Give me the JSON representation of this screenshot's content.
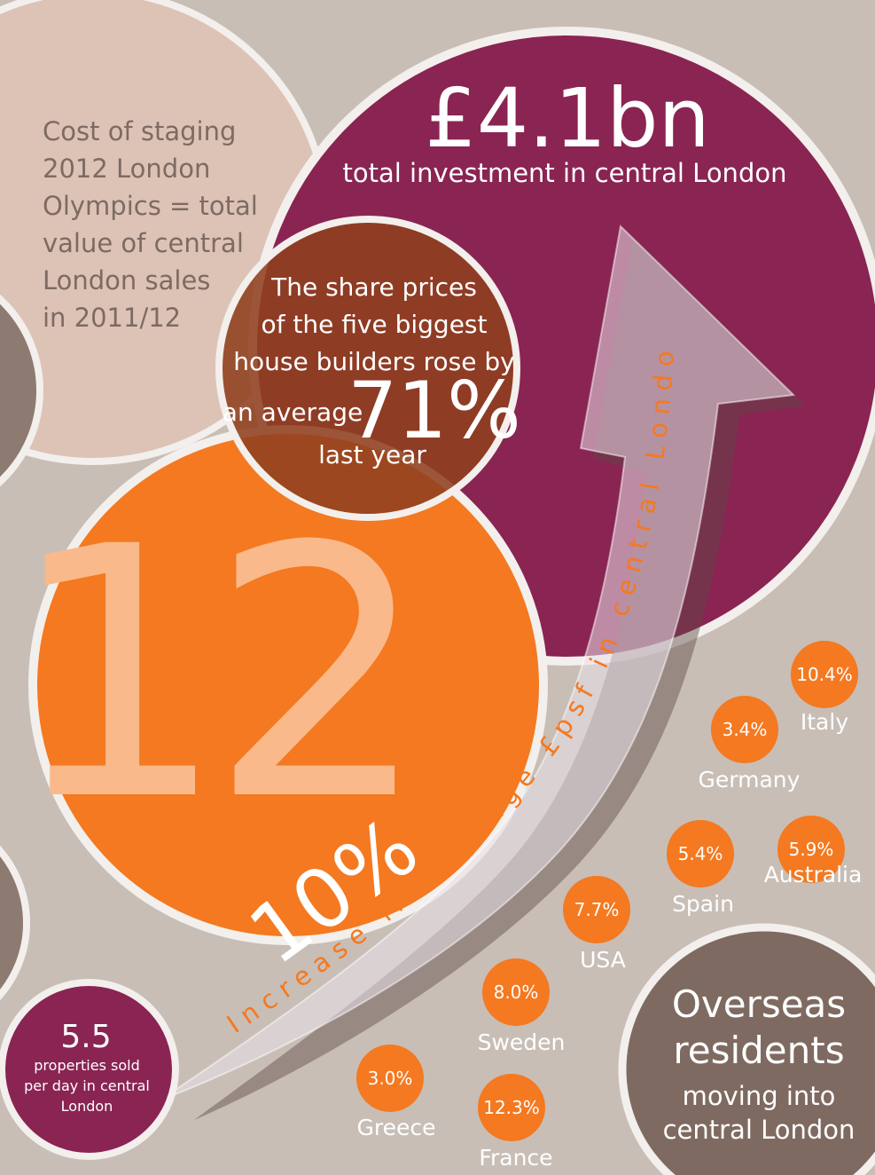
{
  "olympics": {
    "lines": [
      "Cost of staging",
      "2012 London",
      "Olympics = total",
      "value of central",
      "London sales",
      "in 2011/12"
    ]
  },
  "investment": {
    "value": "£4.1bn",
    "label": "total investment in central London"
  },
  "share_prices": {
    "lines": [
      "The share prices",
      "of the five biggest",
      "house builders rose by"
    ],
    "prefix": "an average",
    "value": "71%",
    "suffix": "last year"
  },
  "big_number": "12",
  "arrow": {
    "value": "10%",
    "label": "Increase in average £psf in central London"
  },
  "properties": {
    "value": "5.5",
    "lines": [
      "properties sold",
      "per day in central",
      "London"
    ]
  },
  "overseas": {
    "title_lines": [
      "Overseas",
      "residents"
    ],
    "subtitle_lines": [
      "moving into",
      "central London"
    ]
  },
  "countries": [
    {
      "name": "Italy",
      "share": "10.4%"
    },
    {
      "name": "Germany",
      "share": "3.4%"
    },
    {
      "name": "Spain",
      "share": "5.4%"
    },
    {
      "name": "Australia",
      "share": "5.9%"
    },
    {
      "name": "USA",
      "share": "7.7%"
    },
    {
      "name": "Sweden",
      "share": "8.0%"
    },
    {
      "name": "Greece",
      "share": "3.0%"
    },
    {
      "name": "France",
      "share": "12.3%"
    }
  ]
}
